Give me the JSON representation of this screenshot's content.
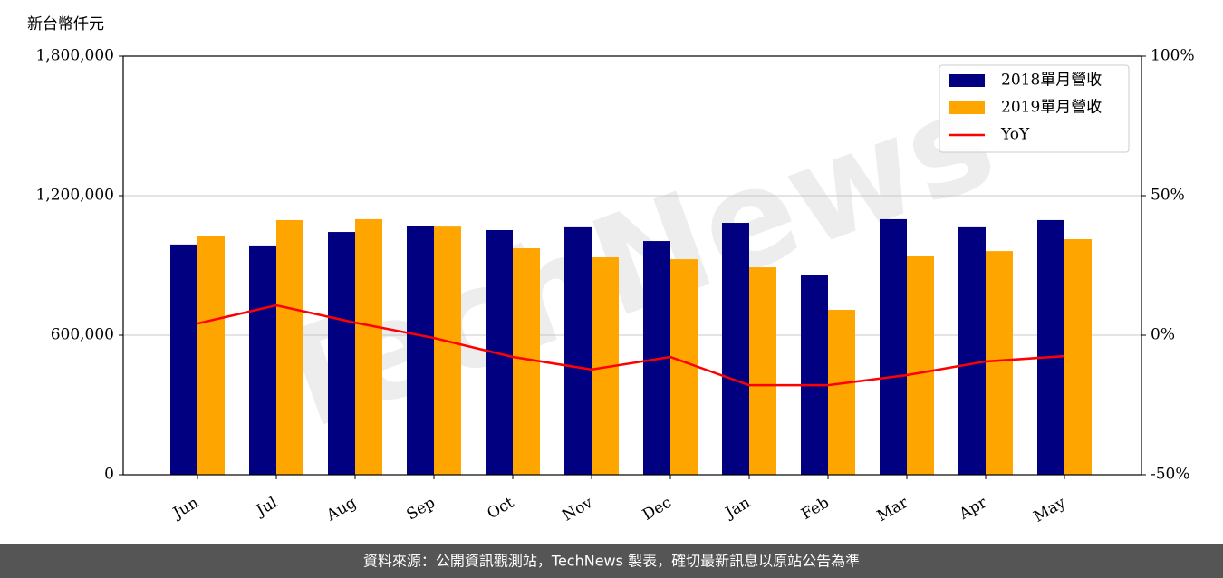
{
  "chart_data": {
    "type": "bar_line",
    "y_label": "新台幣仟元",
    "watermark": "TechNews",
    "source": "資料來源：公開資訊觀測站，TechNews 製表，確切最新訊息以原站公告為準",
    "categories": [
      "Jun",
      "Jul",
      "Aug",
      "Sep",
      "Oct",
      "Nov",
      "Dec",
      "Jan",
      "Feb",
      "Mar",
      "Apr",
      "May"
    ],
    "series": [
      {
        "name": "2018單月營收",
        "color": "#000080",
        "values": [
          990000,
          986000,
          1044000,
          1071000,
          1052000,
          1064000,
          1005000,
          1083000,
          861000,
          1099000,
          1064000,
          1095000
        ]
      },
      {
        "name": "2019單月營收",
        "color": "#ffa500",
        "values": [
          1028000,
          1095000,
          1099000,
          1067000,
          974000,
          935000,
          927000,
          892000,
          709000,
          939000,
          962000,
          1013000
        ]
      },
      {
        "name": "YoY",
        "color": "#ff0000",
        "axis": "y2",
        "values": [
          4.2,
          10.7,
          4.5,
          -1.0,
          -7.8,
          -12.3,
          -7.8,
          -17.9,
          -17.9,
          -14.3,
          -9.4,
          -7.5
        ]
      }
    ],
    "ylim": [
      0,
      1800000
    ],
    "yticks": [
      0,
      {
        "value": 600000,
        "label": "600,000"
      },
      {
        "value": 1200000,
        "label": "1,200,000"
      },
      {
        "value": 1800000,
        "label": "1,800,000"
      }
    ],
    "y2lim": [
      -50,
      100
    ],
    "y2ticks": [
      {
        "value": -50,
        "label": "-50%"
      },
      {
        "value": 0,
        "label": "0%"
      },
      {
        "value": 50,
        "label": "50%"
      },
      {
        "value": 100,
        "label": "100%"
      }
    ],
    "grid": true,
    "legend": "upper right"
  }
}
